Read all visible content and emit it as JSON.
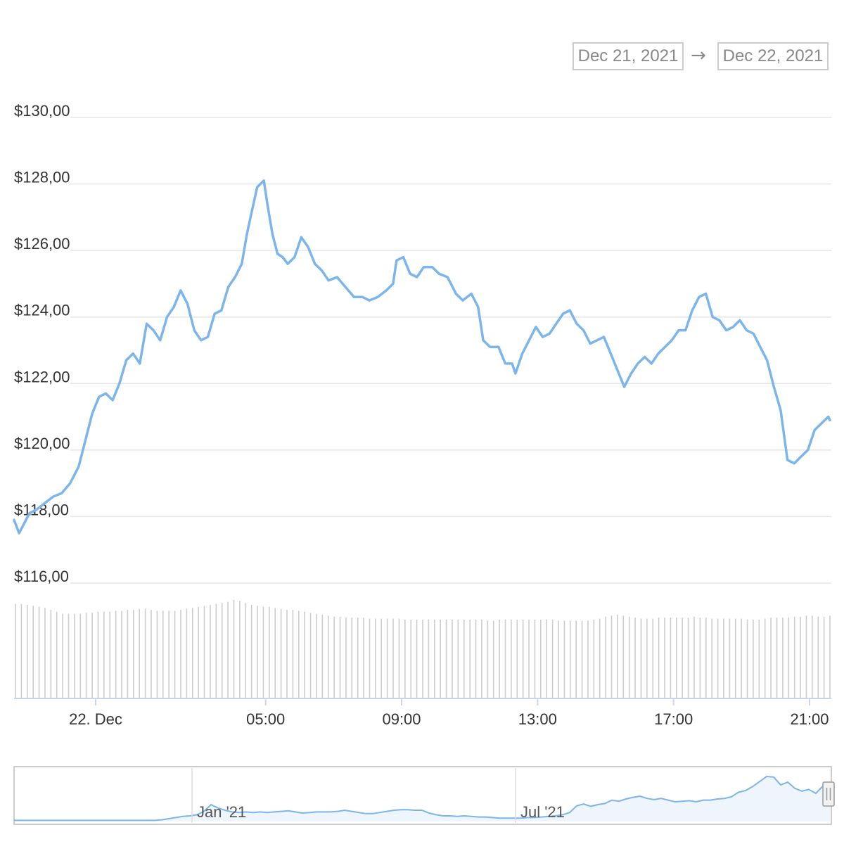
{
  "range_selector": {
    "from": "Dec 21, 2021",
    "arrow": "→",
    "to": "Dec 22, 2021"
  },
  "chart_data": {
    "type": "line",
    "title": "",
    "xlabel": "",
    "ylabel": "",
    "ylim": [
      116,
      130
    ],
    "y_ticks": [
      "$130,00",
      "$128,00",
      "$126,00",
      "$124,00",
      "$122,00",
      "$120,00",
      "$118,00",
      "$116,00"
    ],
    "y_tick_values": [
      130,
      128,
      126,
      124,
      122,
      120,
      118,
      116
    ],
    "x_ticks": [
      "22. Dec",
      "05:00",
      "09:00",
      "13:00",
      "17:00",
      "21:00"
    ],
    "x_tick_hours": [
      0,
      5,
      9,
      13,
      17,
      21
    ],
    "x_range_hours": [
      -2.4,
      21.6
    ],
    "line_color": "#7cb5ec",
    "series": [
      {
        "points": [
          [
            -2.4,
            117.9
          ],
          [
            -2.25,
            117.5
          ],
          [
            -2.1,
            117.8
          ],
          [
            -1.95,
            118.1
          ],
          [
            -1.75,
            118.2
          ],
          [
            -1.5,
            118.4
          ],
          [
            -1.25,
            118.6
          ],
          [
            -1.0,
            118.7
          ],
          [
            -0.75,
            119.0
          ],
          [
            -0.5,
            119.5
          ],
          [
            -0.3,
            120.3
          ],
          [
            -0.1,
            121.1
          ],
          [
            0.1,
            121.6
          ],
          [
            0.3,
            121.7
          ],
          [
            0.5,
            121.5
          ],
          [
            0.7,
            122.0
          ],
          [
            0.9,
            122.7
          ],
          [
            1.1,
            122.9
          ],
          [
            1.3,
            122.6
          ],
          [
            1.5,
            123.8
          ],
          [
            1.7,
            123.6
          ],
          [
            1.9,
            123.3
          ],
          [
            2.1,
            124.0
          ],
          [
            2.3,
            124.3
          ],
          [
            2.5,
            124.8
          ],
          [
            2.7,
            124.4
          ],
          [
            2.9,
            123.6
          ],
          [
            3.1,
            123.3
          ],
          [
            3.3,
            123.4
          ],
          [
            3.5,
            124.1
          ],
          [
            3.7,
            124.2
          ],
          [
            3.9,
            124.9
          ],
          [
            4.1,
            125.2
          ],
          [
            4.3,
            125.6
          ],
          [
            4.45,
            126.5
          ],
          [
            4.6,
            127.2
          ],
          [
            4.75,
            127.9
          ],
          [
            4.95,
            128.1
          ],
          [
            5.05,
            127.4
          ],
          [
            5.2,
            126.5
          ],
          [
            5.35,
            125.9
          ],
          [
            5.5,
            125.8
          ],
          [
            5.65,
            125.6
          ],
          [
            5.85,
            125.8
          ],
          [
            6.05,
            126.4
          ],
          [
            6.25,
            126.1
          ],
          [
            6.45,
            125.6
          ],
          [
            6.65,
            125.4
          ],
          [
            6.85,
            125.1
          ],
          [
            7.1,
            125.2
          ],
          [
            7.35,
            124.9
          ],
          [
            7.6,
            124.6
          ],
          [
            7.85,
            124.6
          ],
          [
            8.05,
            124.5
          ],
          [
            8.3,
            124.6
          ],
          [
            8.55,
            124.8
          ],
          [
            8.75,
            125.0
          ],
          [
            8.85,
            125.7
          ],
          [
            9.05,
            125.8
          ],
          [
            9.25,
            125.3
          ],
          [
            9.45,
            125.2
          ],
          [
            9.65,
            125.5
          ],
          [
            9.9,
            125.5
          ],
          [
            10.1,
            125.3
          ],
          [
            10.35,
            125.2
          ],
          [
            10.6,
            124.7
          ],
          [
            10.8,
            124.5
          ],
          [
            11.05,
            124.7
          ],
          [
            11.25,
            124.3
          ],
          [
            11.4,
            123.3
          ],
          [
            11.6,
            123.1
          ],
          [
            11.85,
            123.1
          ],
          [
            12.05,
            122.6
          ],
          [
            12.25,
            122.6
          ],
          [
            12.35,
            122.3
          ],
          [
            12.55,
            122.9
          ],
          [
            12.75,
            123.3
          ],
          [
            12.95,
            123.7
          ],
          [
            13.15,
            123.4
          ],
          [
            13.35,
            123.5
          ],
          [
            13.55,
            123.8
          ],
          [
            13.75,
            124.1
          ],
          [
            13.95,
            124.2
          ],
          [
            14.15,
            123.8
          ],
          [
            14.35,
            123.6
          ],
          [
            14.55,
            123.2
          ],
          [
            14.75,
            123.3
          ],
          [
            14.95,
            123.4
          ],
          [
            15.15,
            122.9
          ],
          [
            15.35,
            122.4
          ],
          [
            15.55,
            121.9
          ],
          [
            15.75,
            122.3
          ],
          [
            15.95,
            122.6
          ],
          [
            16.15,
            122.8
          ],
          [
            16.35,
            122.6
          ],
          [
            16.55,
            122.9
          ],
          [
            16.75,
            123.1
          ],
          [
            16.95,
            123.3
          ],
          [
            17.15,
            123.6
          ],
          [
            17.35,
            123.6
          ],
          [
            17.55,
            124.2
          ],
          [
            17.75,
            124.6
          ],
          [
            17.95,
            124.7
          ],
          [
            18.15,
            124.0
          ],
          [
            18.35,
            123.9
          ],
          [
            18.55,
            123.6
          ],
          [
            18.75,
            123.7
          ],
          [
            18.95,
            123.9
          ],
          [
            19.15,
            123.6
          ],
          [
            19.35,
            123.5
          ],
          [
            19.55,
            123.1
          ],
          [
            19.75,
            122.7
          ],
          [
            19.95,
            121.9
          ],
          [
            20.15,
            121.2
          ],
          [
            20.35,
            119.7
          ],
          [
            20.55,
            119.6
          ],
          [
            20.75,
            119.8
          ],
          [
            20.95,
            120.0
          ],
          [
            21.15,
            120.6
          ],
          [
            21.35,
            120.8
          ],
          [
            21.55,
            121.0
          ],
          [
            21.6,
            120.9
          ]
        ]
      }
    ],
    "volume_color": "#cccccc",
    "volume": [
      0.96,
      0.96,
      0.95,
      0.94,
      0.93,
      0.92,
      0.9,
      0.88,
      0.86,
      0.86,
      0.86,
      0.86,
      0.87,
      0.87,
      0.88,
      0.88,
      0.88,
      0.89,
      0.89,
      0.9,
      0.9,
      0.91,
      0.91,
      0.9,
      0.89,
      0.89,
      0.89,
      0.89,
      0.9,
      0.91,
      0.92,
      0.93,
      0.94,
      0.95,
      0.96,
      0.97,
      0.98,
      1.0,
      0.99,
      0.97,
      0.95,
      0.94,
      0.93,
      0.93,
      0.92,
      0.91,
      0.9,
      0.9,
      0.89,
      0.88,
      0.87,
      0.86,
      0.85,
      0.84,
      0.83,
      0.83,
      0.82,
      0.82,
      0.82,
      0.82,
      0.81,
      0.81,
      0.81,
      0.81,
      0.81,
      0.81,
      0.8,
      0.8,
      0.8,
      0.8,
      0.8,
      0.8,
      0.8,
      0.8,
      0.8,
      0.8,
      0.8,
      0.8,
      0.8,
      0.8,
      0.79,
      0.79,
      0.8,
      0.8,
      0.8,
      0.8,
      0.8,
      0.8,
      0.8,
      0.8,
      0.8,
      0.8,
      0.79,
      0.79,
      0.79,
      0.79,
      0.79,
      0.79,
      0.8,
      0.81,
      0.83,
      0.84,
      0.85,
      0.84,
      0.83,
      0.82,
      0.81,
      0.81,
      0.81,
      0.82,
      0.82,
      0.82,
      0.82,
      0.82,
      0.82,
      0.83,
      0.82,
      0.82,
      0.81,
      0.81,
      0.81,
      0.81,
      0.81,
      0.81,
      0.8,
      0.8,
      0.8,
      0.81,
      0.82,
      0.82,
      0.82,
      0.82,
      0.83,
      0.83,
      0.84,
      0.84,
      0.83,
      0.83,
      0.84
    ],
    "navigator": {
      "x_ticks": [
        "Jan '21",
        "Jul '21"
      ],
      "line_color": "#7cb5ec",
      "fill_color": "#eef5fc",
      "values": [
        0.02,
        0.02,
        0.02,
        0.02,
        0.02,
        0.02,
        0.02,
        0.02,
        0.02,
        0.02,
        0.02,
        0.02,
        0.02,
        0.02,
        0.02,
        0.02,
        0.02,
        0.02,
        0.02,
        0.02,
        0.02,
        0.03,
        0.05,
        0.07,
        0.09,
        0.1,
        0.12,
        0.18,
        0.3,
        0.24,
        0.2,
        0.17,
        0.16,
        0.17,
        0.16,
        0.17,
        0.16,
        0.17,
        0.18,
        0.19,
        0.17,
        0.15,
        0.16,
        0.17,
        0.17,
        0.17,
        0.18,
        0.2,
        0.18,
        0.16,
        0.14,
        0.14,
        0.16,
        0.18,
        0.2,
        0.21,
        0.21,
        0.2,
        0.2,
        0.15,
        0.12,
        0.1,
        0.1,
        0.09,
        0.1,
        0.09,
        0.08,
        0.08,
        0.07,
        0.06,
        0.06,
        0.06,
        0.06,
        0.07,
        0.07,
        0.08,
        0.09,
        0.1,
        0.12,
        0.16,
        0.28,
        0.31,
        0.27,
        0.3,
        0.32,
        0.38,
        0.36,
        0.4,
        0.43,
        0.45,
        0.41,
        0.39,
        0.41,
        0.38,
        0.35,
        0.36,
        0.37,
        0.35,
        0.38,
        0.38,
        0.4,
        0.41,
        0.44,
        0.52,
        0.55,
        0.62,
        0.71,
        0.8,
        0.79,
        0.65,
        0.7,
        0.59,
        0.54,
        0.57,
        0.5,
        0.63,
        0.65
      ]
    }
  }
}
